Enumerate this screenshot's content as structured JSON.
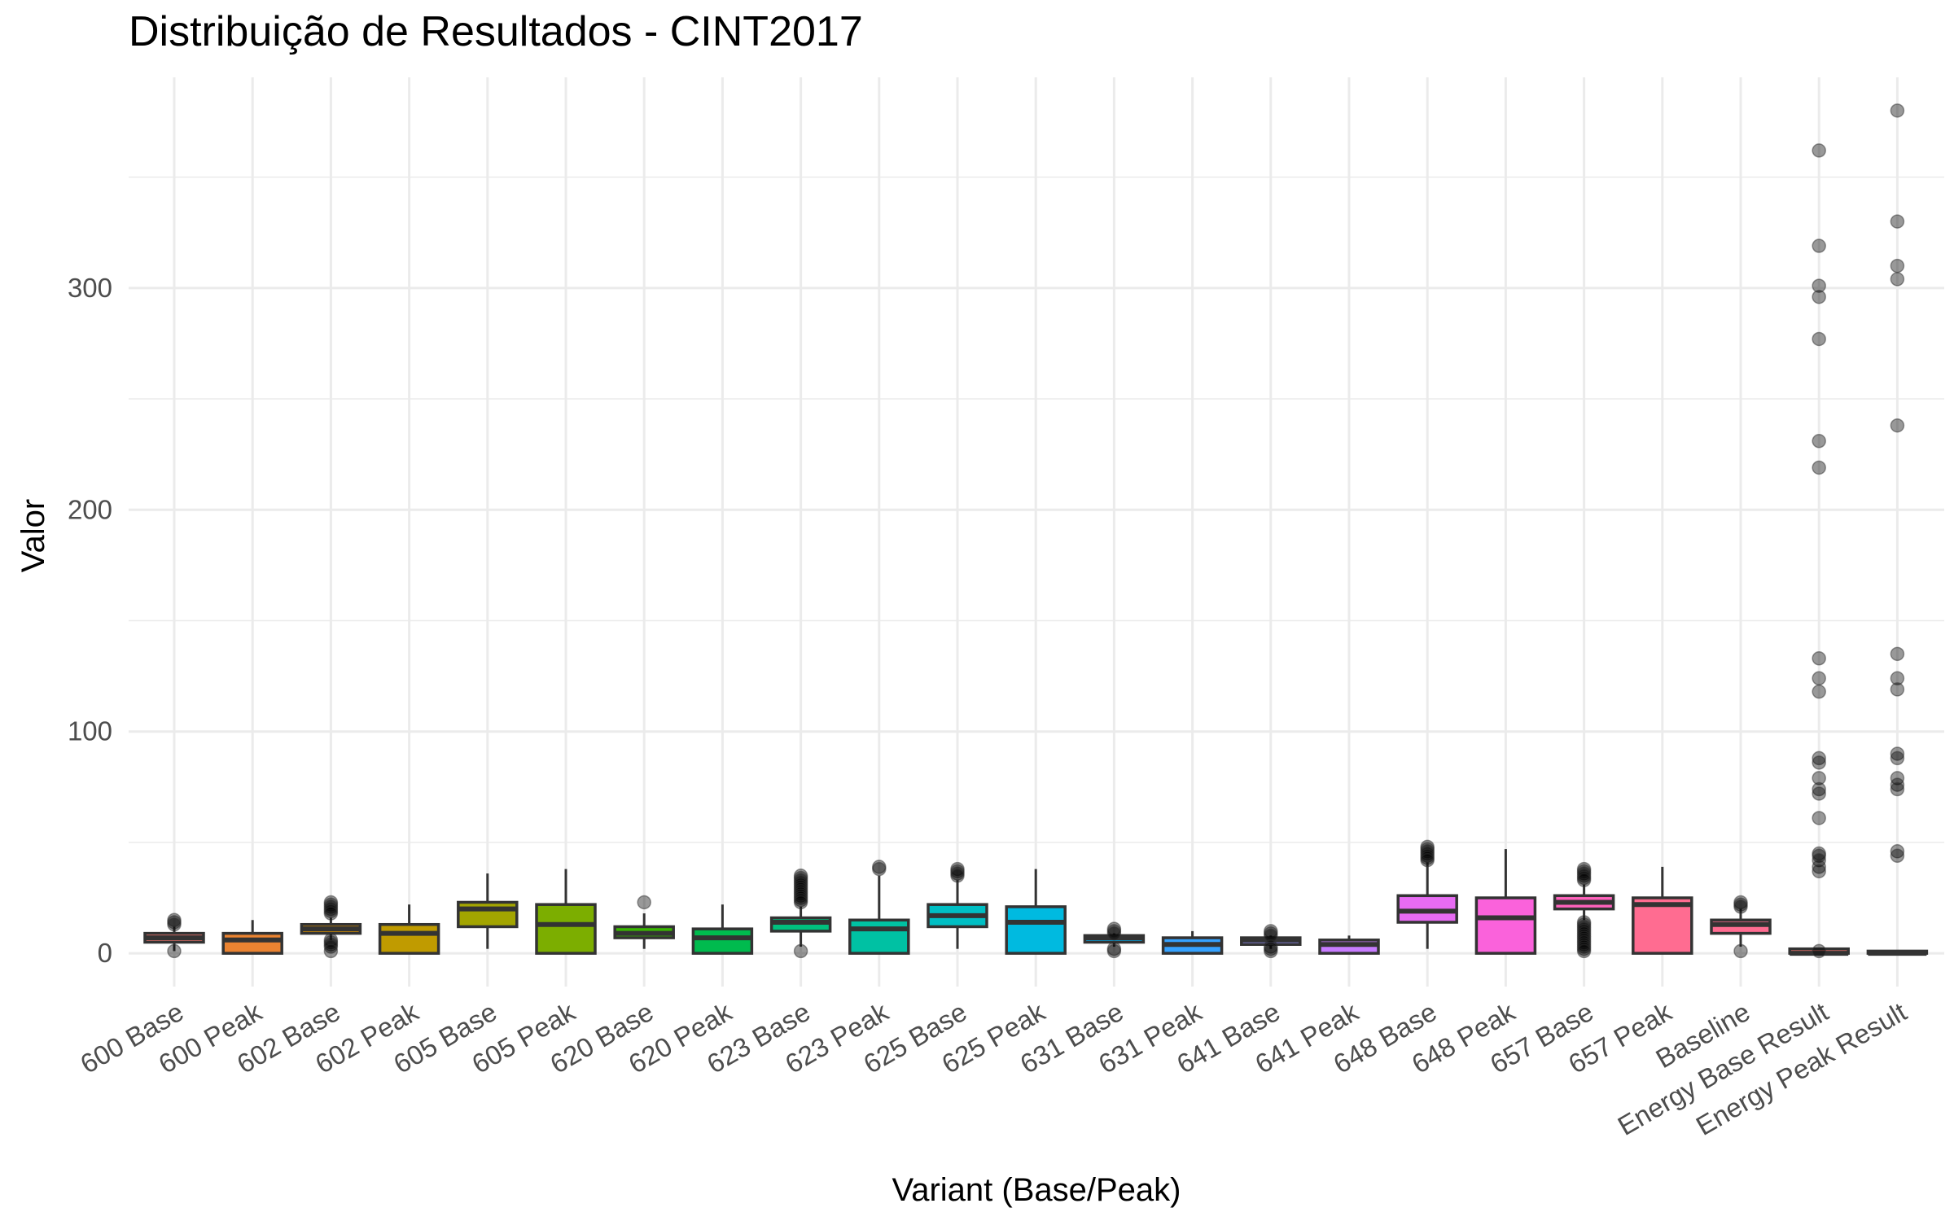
{
  "chart_data": {
    "type": "box",
    "title": "Distribuição de Resultados - CINT2017",
    "xlabel": "Variant (Base/Peak)",
    "ylabel": "Valor",
    "ylim": [
      -15,
      395
    ],
    "y_ticks": [
      0,
      100,
      200,
      300
    ],
    "grid": true,
    "legend": "none",
    "categories": [
      {
        "label": "600 Base",
        "color": "#F8766D",
        "min": 1,
        "q1": 5,
        "median": 7,
        "q3": 9,
        "max": 12,
        "outliers": [
          14,
          15,
          13,
          1
        ]
      },
      {
        "label": "600 Peak",
        "color": "#EA8331",
        "min": 0,
        "q1": 0,
        "median": 6,
        "q3": 9,
        "max": 15,
        "outliers": []
      },
      {
        "label": "602 Base",
        "color": "#D89000",
        "min": 6,
        "q1": 9,
        "median": 11,
        "q3": 13,
        "max": 16,
        "outliers": [
          23,
          22,
          21,
          20,
          19,
          18,
          6,
          5,
          4,
          3,
          1
        ]
      },
      {
        "label": "602 Peak",
        "color": "#C09B00",
        "min": 0,
        "q1": 0,
        "median": 9,
        "q3": 13,
        "max": 22,
        "outliers": []
      },
      {
        "label": "605 Base",
        "color": "#A3A500",
        "min": 2,
        "q1": 12,
        "median": 20,
        "q3": 23,
        "max": 36,
        "outliers": []
      },
      {
        "label": "605 Peak",
        "color": "#7CAE00",
        "min": 0,
        "q1": 0,
        "median": 13,
        "q3": 22,
        "max": 38,
        "outliers": []
      },
      {
        "label": "620 Base",
        "color": "#39B600",
        "min": 2,
        "q1": 7,
        "median": 9,
        "q3": 12,
        "max": 18,
        "outliers": [
          23
        ]
      },
      {
        "label": "620 Peak",
        "color": "#00BB4E",
        "min": 0,
        "q1": 0,
        "median": 7,
        "q3": 11,
        "max": 22,
        "outliers": []
      },
      {
        "label": "623 Base",
        "color": "#00BF7D",
        "min": 3,
        "q1": 10,
        "median": 14,
        "q3": 16,
        "max": 21,
        "outliers": [
          35,
          34,
          33,
          32,
          31,
          30,
          29,
          28,
          27,
          26,
          25,
          24,
          23,
          1
        ]
      },
      {
        "label": "623 Peak",
        "color": "#00C1A3",
        "min": 0,
        "q1": 0,
        "median": 11,
        "q3": 15,
        "max": 35,
        "outliers": [
          39,
          38
        ]
      },
      {
        "label": "625 Base",
        "color": "#00BFC4",
        "min": 2,
        "q1": 12,
        "median": 17,
        "q3": 22,
        "max": 33,
        "outliers": [
          38,
          37,
          36,
          35
        ]
      },
      {
        "label": "625 Peak",
        "color": "#00BAE0",
        "min": 0,
        "q1": 0,
        "median": 14,
        "q3": 21,
        "max": 38,
        "outliers": []
      },
      {
        "label": "631 Base",
        "color": "#00B0F6",
        "min": 3,
        "q1": 5,
        "median": 7,
        "q3": 8,
        "max": 9,
        "outliers": [
          11,
          10,
          9,
          2,
          1
        ]
      },
      {
        "label": "631 Peak",
        "color": "#35A2FF",
        "min": 0,
        "q1": 0,
        "median": 4,
        "q3": 7,
        "max": 10,
        "outliers": []
      },
      {
        "label": "641 Base",
        "color": "#9590FF",
        "min": 2,
        "q1": 4,
        "median": 6,
        "q3": 7,
        "max": 8,
        "outliers": [
          10,
          9,
          8,
          3,
          2,
          1
        ]
      },
      {
        "label": "641 Peak",
        "color": "#C77CFF",
        "min": 0,
        "q1": 0,
        "median": 4,
        "q3": 6,
        "max": 8,
        "outliers": []
      },
      {
        "label": "648 Base",
        "color": "#E76BF3",
        "min": 2,
        "q1": 14,
        "median": 19,
        "q3": 26,
        "max": 41,
        "outliers": [
          48,
          47,
          46,
          45,
          44,
          43,
          42
        ]
      },
      {
        "label": "648 Peak",
        "color": "#FA62DB",
        "min": 0,
        "q1": 0,
        "median": 16,
        "q3": 25,
        "max": 47,
        "outliers": []
      },
      {
        "label": "657 Base",
        "color": "#FF62BC",
        "min": 15,
        "q1": 20,
        "median": 23,
        "q3": 26,
        "max": 31,
        "outliers": [
          38,
          37,
          36,
          35,
          34,
          33,
          14,
          13,
          12,
          11,
          10,
          9,
          8,
          7,
          6,
          5,
          4,
          3,
          2,
          1
        ]
      },
      {
        "label": "657 Peak",
        "color": "#FF6C91",
        "min": 0,
        "q1": 0,
        "median": 22,
        "q3": 25,
        "max": 39,
        "outliers": []
      },
      {
        "label": "Baseline",
        "color": "#FF6C91",
        "min": 3,
        "q1": 9,
        "median": 13,
        "q3": 15,
        "max": 20,
        "outliers": [
          23,
          22,
          21,
          1
        ]
      },
      {
        "label": "Energy Base Result",
        "color": "#F8766D",
        "min": 0,
        "q1": 0,
        "median": 0,
        "q3": 2,
        "max": 2,
        "outliers": [
          362,
          319,
          301,
          296,
          277,
          231,
          219,
          133,
          124,
          118,
          88,
          86,
          79,
          74,
          72,
          61,
          45,
          44,
          42,
          39,
          37,
          1
        ]
      },
      {
        "label": "Energy Peak Result",
        "color": "#F8766D",
        "min": 0,
        "q1": 0,
        "median": 0,
        "q3": 1,
        "max": 1,
        "outliers": [
          380,
          330,
          310,
          304,
          238,
          135,
          124,
          119,
          90,
          88,
          79,
          76,
          74,
          46,
          44
        ]
      }
    ]
  }
}
